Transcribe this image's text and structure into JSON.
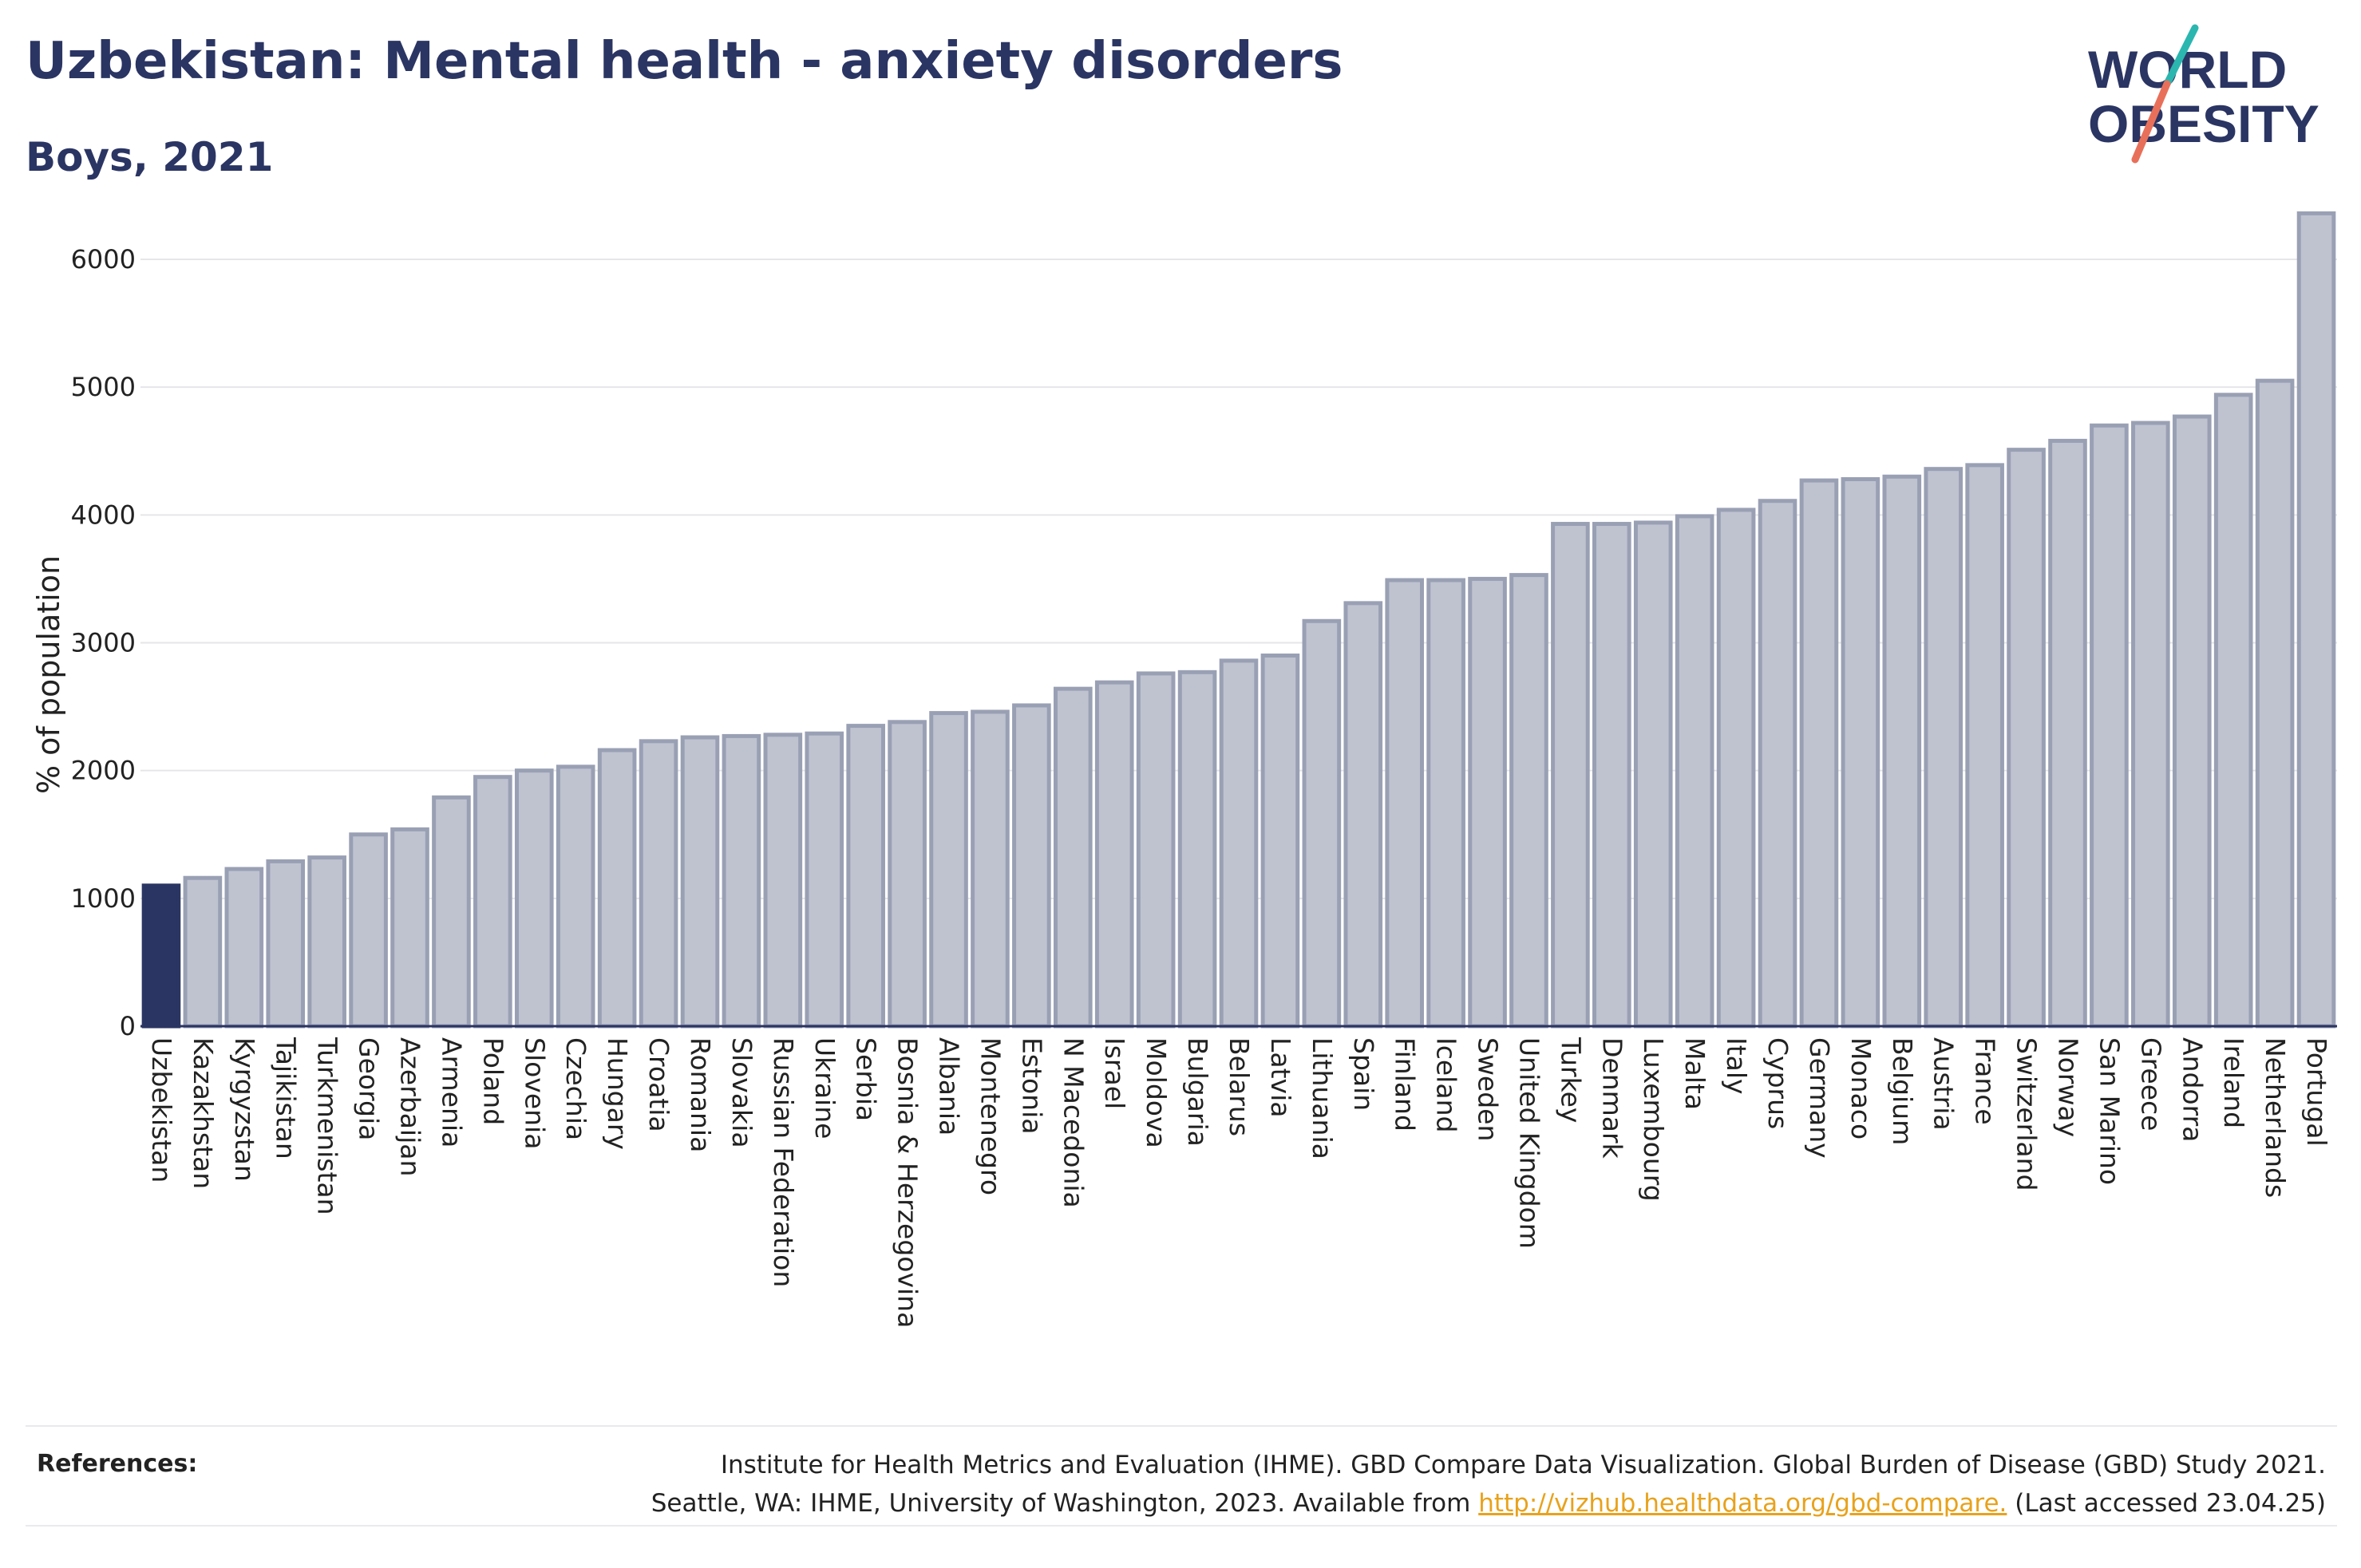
{
  "header": {
    "title": "Uzbekistan: Mental health - anxiety disorders",
    "subtitle": "Boys, 2021"
  },
  "logo": {
    "line1": "WORLD",
    "line2": "OBESITY",
    "accent_teal": "#2bb6b0",
    "accent_coral": "#e8705a",
    "color": "#2b3563"
  },
  "colors": {
    "highlight_bar": "#2b3563",
    "bar_fill": "#bfc3d0",
    "bar_stroke": "#9aa0b4",
    "grid": "#e6e6ea",
    "axis": "#2b3563"
  },
  "chart_data": {
    "type": "bar",
    "title": "Uzbekistan: Mental health - anxiety disorders",
    "subtitle": "Boys, 2021",
    "xlabel": "",
    "ylabel": "% of population",
    "ylim": [
      0,
      6500
    ],
    "yticks": [
      0,
      1000,
      2000,
      3000,
      4000,
      5000,
      6000
    ],
    "grid": true,
    "highlight": "Uzbekistan",
    "categories": [
      "Uzbekistan",
      "Kazakhstan",
      "Kyrgyzstan",
      "Tajikistan",
      "Turkmenistan",
      "Georgia",
      "Azerbaijan",
      "Armenia",
      "Poland",
      "Slovenia",
      "Czechia",
      "Hungary",
      "Croatia",
      "Romania",
      "Slovakia",
      "Russian Federation",
      "Ukraine",
      "Serbia",
      "Bosnia & Herzegovina",
      "Albania",
      "Montenegro",
      "Estonia",
      "N Macedonia",
      "Israel",
      "Moldova",
      "Bulgaria",
      "Belarus",
      "Latvia",
      "Lithuania",
      "Spain",
      "Finland",
      "Iceland",
      "Sweden",
      "United Kingdom",
      "Turkey",
      "Denmark",
      "Luxembourg",
      "Malta",
      "Italy",
      "Cyprus",
      "Germany",
      "Monaco",
      "Belgium",
      "Austria",
      "France",
      "Switzerland",
      "Norway",
      "San Marino",
      "Greece",
      "Andorra",
      "Ireland",
      "Netherlands",
      "Portugal"
    ],
    "values": [
      1100,
      1160,
      1230,
      1290,
      1320,
      1500,
      1540,
      1790,
      1950,
      2000,
      2030,
      2160,
      2230,
      2260,
      2270,
      2280,
      2290,
      2350,
      2380,
      2450,
      2460,
      2510,
      2640,
      2690,
      2760,
      2770,
      2860,
      2900,
      3170,
      3310,
      3490,
      3490,
      3500,
      3530,
      3930,
      3930,
      3940,
      3990,
      4040,
      4110,
      4270,
      4280,
      4300,
      4360,
      4390,
      4510,
      4580,
      4700,
      4720,
      4770,
      4940,
      5050,
      6360
    ]
  },
  "references": {
    "label": "References:",
    "line1": "Institute for Health Metrics and Evaluation (IHME). GBD Compare Data Visualization. Global Burden of Disease (GBD) Study 2021.",
    "line2_prefix": "Seattle, WA: IHME, University of Washington, 2023. Available from ",
    "link": "http://vizhub.healthdata.org/gbd-compare.",
    "line2_suffix": " (Last accessed 23.04.25)"
  }
}
